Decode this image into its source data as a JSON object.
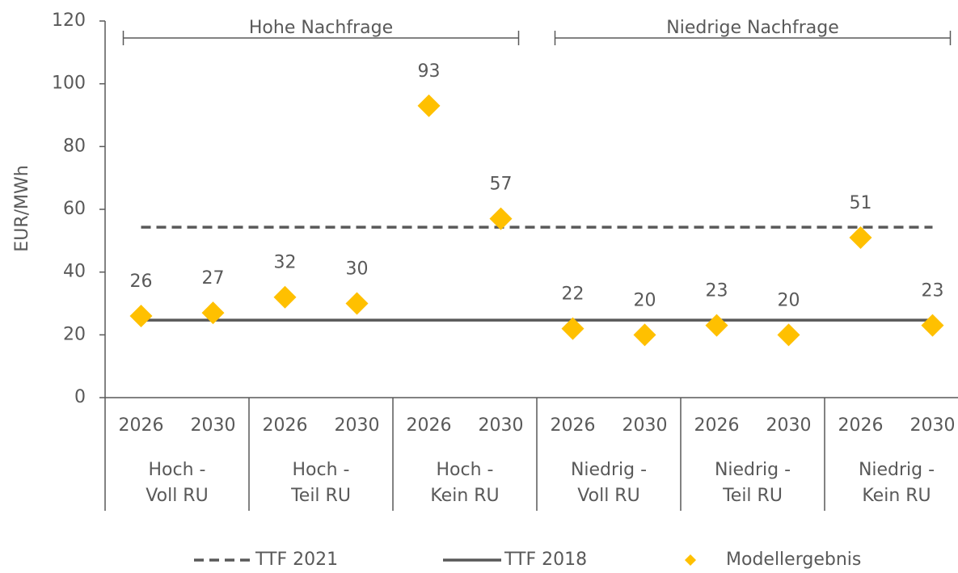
{
  "chart_data": {
    "type": "scatter",
    "y_label": "EUR/MWh",
    "categories": [
      "2026",
      "2030",
      "2026",
      "2030",
      "2026",
      "2030",
      "2026",
      "2030",
      "2026",
      "2030",
      "2026",
      "2030"
    ],
    "groups": [
      {
        "lines": [
          "Hoch -",
          "Voll RU"
        ]
      },
      {
        "lines": [
          "Hoch -",
          "Teil RU"
        ]
      },
      {
        "lines": [
          "Hoch -",
          "Kein RU"
        ]
      },
      {
        "lines": [
          "Niedrig -",
          "Voll RU"
        ]
      },
      {
        "lines": [
          "Niedrig -",
          "Teil RU"
        ]
      },
      {
        "lines": [
          "Niedrig -",
          "Kein RU"
        ]
      }
    ],
    "annotations": [
      {
        "text": "Hohe Nachfrage"
      },
      {
        "text": "Niedrige Nachfrage"
      }
    ],
    "reference_lines": [
      {
        "name": "TTF 2021",
        "value": 54.3,
        "color": "#595959",
        "dashed": true
      },
      {
        "name": "TTF 2018",
        "value": 24.7,
        "color": "#595959",
        "dashed": false
      }
    ],
    "series": [
      {
        "name": "Modellergebnis",
        "color": "#FFC000",
        "values": [
          26,
          27,
          32,
          30,
          93,
          57,
          22,
          20,
          23,
          20,
          51,
          23
        ]
      }
    ],
    "ylim": [
      0,
      120
    ],
    "yticks": [
      0,
      20,
      40,
      60,
      80,
      100,
      120
    ]
  }
}
